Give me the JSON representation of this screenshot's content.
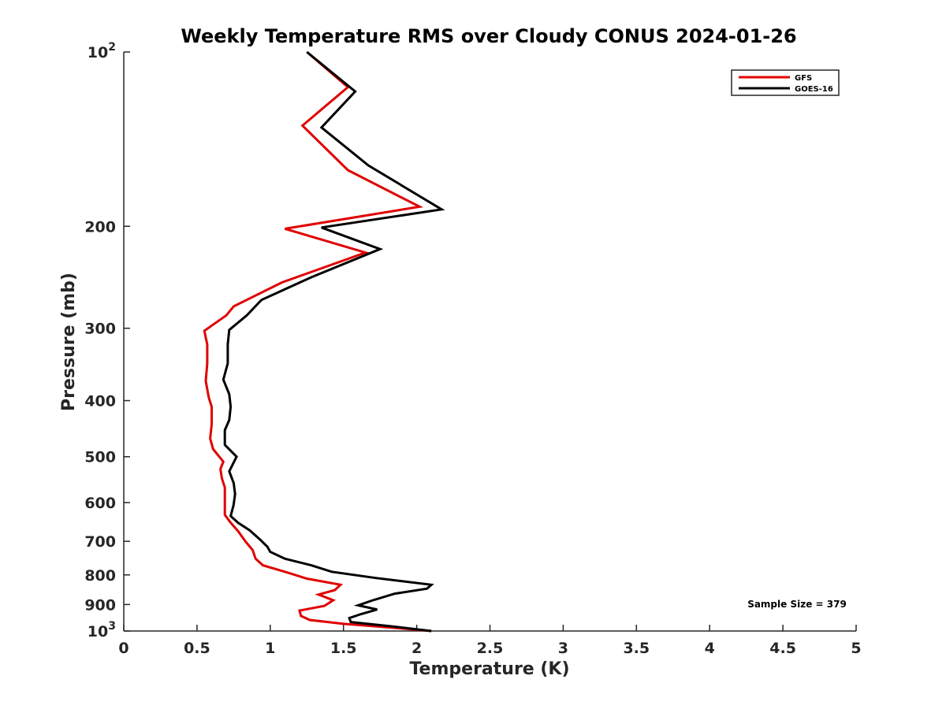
{
  "chart_data": {
    "type": "line",
    "title": "Weekly Temperature RMS over Cloudy CONUS 2024-01-26",
    "xlabel": "Temperature (K)",
    "ylabel": "Pressure (mb)",
    "xlim": [
      0,
      5
    ],
    "ylim": [
      100,
      1000
    ],
    "y_scale": "log",
    "y_reversed": true,
    "grid": false,
    "legend_position": "top-right",
    "x_ticks": [
      {
        "value": 0,
        "label": "0"
      },
      {
        "value": 0.5,
        "label": "0.5"
      },
      {
        "value": 1,
        "label": "1"
      },
      {
        "value": 1.5,
        "label": "1.5"
      },
      {
        "value": 2,
        "label": "2"
      },
      {
        "value": 2.5,
        "label": "2.5"
      },
      {
        "value": 3,
        "label": "3"
      },
      {
        "value": 3.5,
        "label": "3.5"
      },
      {
        "value": 4,
        "label": "4"
      },
      {
        "value": 4.5,
        "label": "4.5"
      },
      {
        "value": 5,
        "label": "5"
      }
    ],
    "y_ticks": [
      {
        "value": 100,
        "base": "10",
        "exp": "2"
      },
      {
        "value": 200,
        "label": "200"
      },
      {
        "value": 300,
        "label": "300"
      },
      {
        "value": 400,
        "label": "400"
      },
      {
        "value": 500,
        "label": "500"
      },
      {
        "value": 600,
        "label": "600"
      },
      {
        "value": 700,
        "label": "700"
      },
      {
        "value": 800,
        "label": "800"
      },
      {
        "value": 900,
        "label": "900"
      },
      {
        "value": 1000,
        "base": "10",
        "exp": "3"
      }
    ],
    "series": [
      {
        "name": "GFS",
        "color": "#e00000",
        "points": [
          [
            1.25,
            100
          ],
          [
            1.53,
            115
          ],
          [
            1.22,
            134
          ],
          [
            1.53,
            160
          ],
          [
            2.02,
            185
          ],
          [
            1.1,
            202
          ],
          [
            1.65,
            222
          ],
          [
            1.08,
            250
          ],
          [
            0.75,
            275
          ],
          [
            0.7,
            285
          ],
          [
            0.55,
            303
          ],
          [
            0.57,
            320
          ],
          [
            0.57,
            345
          ],
          [
            0.56,
            370
          ],
          [
            0.58,
            395
          ],
          [
            0.6,
            410
          ],
          [
            0.6,
            440
          ],
          [
            0.59,
            465
          ],
          [
            0.61,
            485
          ],
          [
            0.68,
            510
          ],
          [
            0.66,
            525
          ],
          [
            0.67,
            545
          ],
          [
            0.69,
            565
          ],
          [
            0.69,
            610
          ],
          [
            0.69,
            630
          ],
          [
            0.73,
            650
          ],
          [
            0.78,
            672
          ],
          [
            0.83,
            700
          ],
          [
            0.88,
            725
          ],
          [
            0.9,
            750
          ],
          [
            0.95,
            770
          ],
          [
            1.1,
            790
          ],
          [
            1.25,
            812
          ],
          [
            1.48,
            832
          ],
          [
            1.44,
            850
          ],
          [
            1.33,
            865
          ],
          [
            1.43,
            885
          ],
          [
            1.37,
            905
          ],
          [
            1.2,
            922
          ],
          [
            1.21,
            942
          ],
          [
            1.27,
            957
          ],
          [
            1.5,
            972
          ],
          [
            1.8,
            985
          ],
          [
            2.1,
            1000
          ]
        ]
      },
      {
        "name": "GOES-16",
        "color": "#000000",
        "points": [
          [
            1.25,
            100
          ],
          [
            1.58,
            117
          ],
          [
            1.35,
            135
          ],
          [
            1.67,
            157
          ],
          [
            2.17,
            187
          ],
          [
            1.35,
            201
          ],
          [
            1.75,
            219
          ],
          [
            1.28,
            245
          ],
          [
            0.94,
            268
          ],
          [
            0.84,
            285
          ],
          [
            0.72,
            302
          ],
          [
            0.71,
            320
          ],
          [
            0.71,
            345
          ],
          [
            0.68,
            368
          ],
          [
            0.72,
            390
          ],
          [
            0.73,
            410
          ],
          [
            0.72,
            432
          ],
          [
            0.69,
            450
          ],
          [
            0.69,
            477
          ],
          [
            0.77,
            500
          ],
          [
            0.72,
            530
          ],
          [
            0.75,
            555
          ],
          [
            0.76,
            580
          ],
          [
            0.75,
            605
          ],
          [
            0.73,
            633
          ],
          [
            0.78,
            650
          ],
          [
            0.86,
            670
          ],
          [
            0.93,
            695
          ],
          [
            0.98,
            715
          ],
          [
            1.0,
            730
          ],
          [
            1.1,
            750
          ],
          [
            1.28,
            770
          ],
          [
            1.42,
            790
          ],
          [
            1.72,
            810
          ],
          [
            2.1,
            832
          ],
          [
            2.07,
            845
          ],
          [
            1.85,
            862
          ],
          [
            1.7,
            885
          ],
          [
            1.6,
            903
          ],
          [
            1.73,
            918
          ],
          [
            1.62,
            935
          ],
          [
            1.54,
            950
          ],
          [
            1.55,
            965
          ],
          [
            1.85,
            983
          ],
          [
            2.1,
            1000
          ]
        ]
      }
    ],
    "annotation": {
      "text": "Sample Size = 379",
      "x": 4.5,
      "y": 900
    }
  }
}
